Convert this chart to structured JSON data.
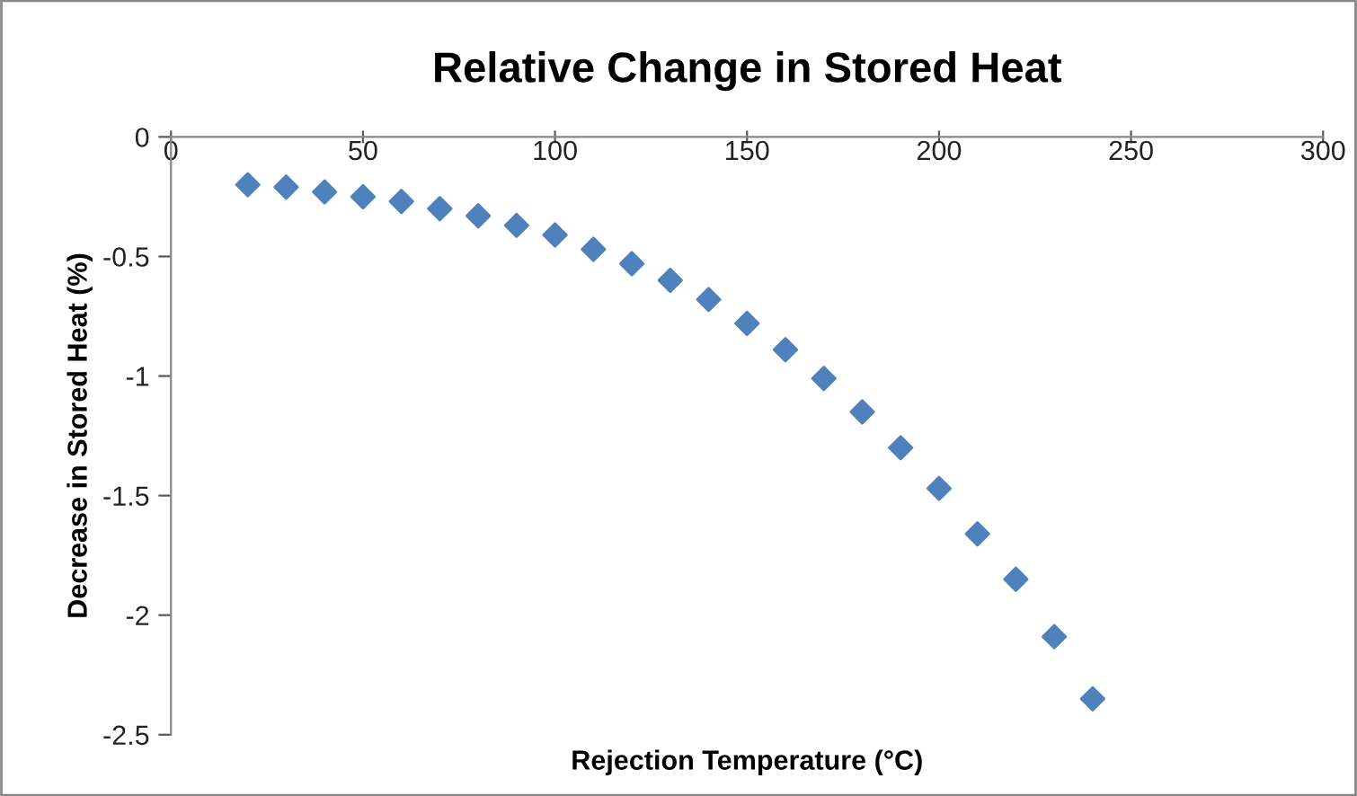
{
  "chart_data": {
    "type": "scatter",
    "title": "Relative Change in Stored Heat",
    "xlabel": "Rejection Temperature (°C)",
    "ylabel": "Decrease in Stored Heat (%)",
    "x": [
      20,
      30,
      40,
      50,
      60,
      70,
      80,
      90,
      100,
      110,
      120,
      130,
      140,
      150,
      160,
      170,
      180,
      190,
      200,
      210,
      220,
      230,
      240
    ],
    "series": [
      {
        "color": "#4f81bd",
        "values": [
          -0.2,
          -0.21,
          -0.23,
          -0.25,
          -0.27,
          -0.3,
          -0.33,
          -0.37,
          -0.41,
          -0.47,
          -0.53,
          -0.6,
          -0.68,
          -0.78,
          -0.89,
          -1.01,
          -1.15,
          -1.3,
          -1.47,
          -1.66,
          -1.85,
          -2.09,
          -2.35
        ]
      }
    ],
    "xlim": [
      0,
      300
    ],
    "xticks": [
      0,
      50,
      100,
      150,
      200,
      250,
      300
    ],
    "ylim": [
      -2.5,
      0
    ],
    "yticks": [
      {
        "value": -2.5,
        "label": "-2.5"
      },
      {
        "value": -2,
        "label": "-2"
      },
      {
        "value": -1.5,
        "label": "-1.5"
      },
      {
        "value": -1,
        "label": "-1"
      },
      {
        "value": -0.5,
        "label": "-0.5"
      },
      {
        "value": 0,
        "label": "0"
      }
    ],
    "marker": "diamond",
    "grid": false,
    "legend": false
  }
}
